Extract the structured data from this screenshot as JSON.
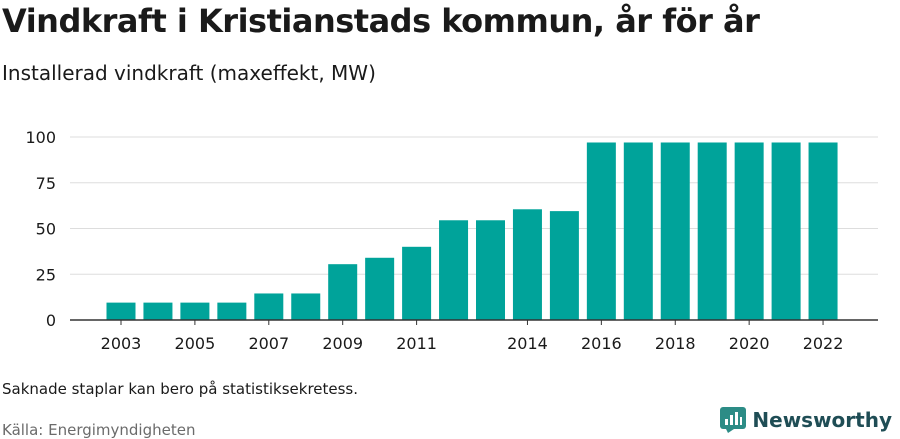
{
  "header": {
    "title": "Vindkraft i Kristianstads kommun, år för år",
    "subtitle": "Installerad vindkraft (maxeffekt, MW)"
  },
  "footer": {
    "note": "Saknade staplar kan bero på statistiksekretess.",
    "source": "Källa: Energimyndigheten",
    "brand": "Newsworthy"
  },
  "colors": {
    "bar": "#00a39a",
    "grid": "#dddddd",
    "axis": "#333333",
    "brand": "#1f4d55"
  },
  "chart_data": {
    "type": "bar",
    "categories": [
      "2003",
      "2004",
      "2005",
      "2006",
      "2007",
      "2008",
      "2009",
      "2010",
      "2011",
      "2012",
      "2013",
      "2014",
      "2015",
      "2016",
      "2017",
      "2018",
      "2019",
      "2020",
      "2021",
      "2022"
    ],
    "values": [
      9.5,
      9.5,
      9.5,
      9.5,
      14.5,
      14.5,
      30.5,
      34,
      40,
      54.5,
      54.5,
      60.5,
      59.5,
      97,
      97,
      97,
      97,
      97,
      97,
      97
    ],
    "x_tick_labels": [
      "2003",
      "",
      "2005",
      "",
      "2007",
      "",
      "2009",
      "",
      "2011",
      "",
      "",
      "2014",
      "",
      "2016",
      "",
      "2018",
      "",
      "2020",
      "",
      "2022"
    ],
    "y_ticks": [
      0,
      25,
      50,
      75,
      100
    ],
    "ylim": [
      0,
      100
    ],
    "grid": true,
    "legend": "none"
  }
}
